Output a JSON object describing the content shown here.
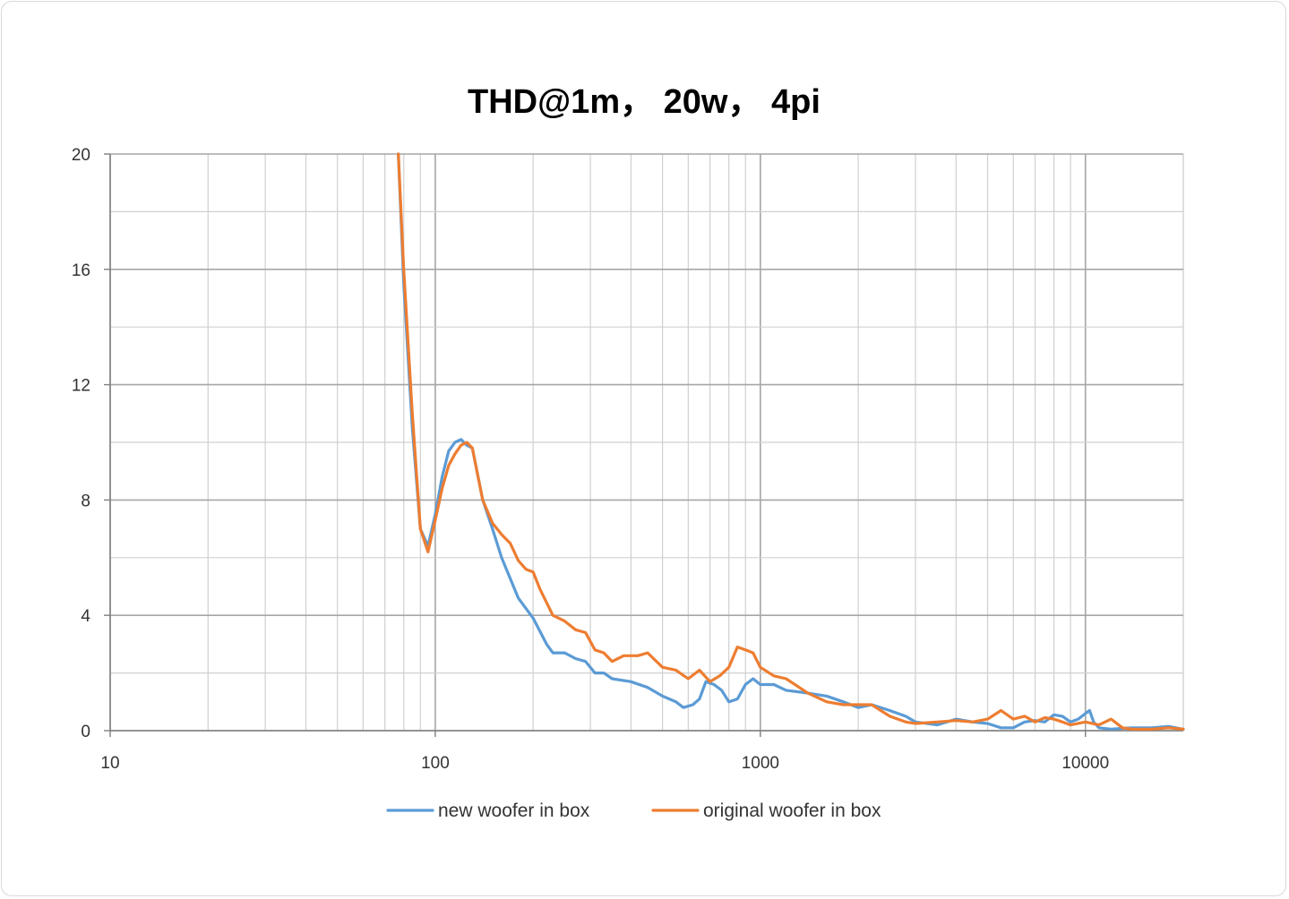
{
  "chart_data": {
    "type": "line",
    "title": "THD@1m，  20w，  4pi",
    "xlabel": "",
    "ylabel": "",
    "x_scale": "log",
    "xlim": [
      10,
      20000
    ],
    "ylim": [
      0,
      20
    ],
    "x_ticks": [
      10,
      100,
      1000,
      10000
    ],
    "x_tick_labels": [
      "10",
      "100",
      "1000",
      "10000"
    ],
    "y_ticks": [
      0,
      4,
      8,
      12,
      16,
      20
    ],
    "y_tick_labels": [
      "0",
      "4",
      "8",
      "12",
      "16",
      "20"
    ],
    "grid": true,
    "legend_position": "bottom",
    "series": [
      {
        "name": "new woofer in box",
        "color": "#5b9bd5",
        "points": [
          [
            77,
            20.5
          ],
          [
            80,
            15.5
          ],
          [
            85,
            10.5
          ],
          [
            90,
            7.0
          ],
          [
            95,
            6.4
          ],
          [
            100,
            7.5
          ],
          [
            105,
            8.8
          ],
          [
            110,
            9.7
          ],
          [
            115,
            10.0
          ],
          [
            120,
            10.1
          ],
          [
            125,
            9.9
          ],
          [
            130,
            9.8
          ],
          [
            140,
            8.0
          ],
          [
            150,
            7.0
          ],
          [
            160,
            6.0
          ],
          [
            180,
            4.6
          ],
          [
            200,
            3.9
          ],
          [
            220,
            3.0
          ],
          [
            230,
            2.7
          ],
          [
            250,
            2.7
          ],
          [
            270,
            2.5
          ],
          [
            290,
            2.4
          ],
          [
            310,
            2.0
          ],
          [
            330,
            2.0
          ],
          [
            350,
            1.8
          ],
          [
            400,
            1.7
          ],
          [
            450,
            1.5
          ],
          [
            500,
            1.2
          ],
          [
            550,
            1.0
          ],
          [
            580,
            0.8
          ],
          [
            620,
            0.9
          ],
          [
            650,
            1.1
          ],
          [
            680,
            1.7
          ],
          [
            720,
            1.6
          ],
          [
            760,
            1.4
          ],
          [
            800,
            1.0
          ],
          [
            850,
            1.1
          ],
          [
            900,
            1.6
          ],
          [
            950,
            1.8
          ],
          [
            1000,
            1.6
          ],
          [
            1100,
            1.6
          ],
          [
            1200,
            1.4
          ],
          [
            1400,
            1.3
          ],
          [
            1600,
            1.2
          ],
          [
            1800,
            1.0
          ],
          [
            2000,
            0.8
          ],
          [
            2200,
            0.9
          ],
          [
            2500,
            0.7
          ],
          [
            2800,
            0.5
          ],
          [
            3000,
            0.3
          ],
          [
            3500,
            0.2
          ],
          [
            4000,
            0.4
          ],
          [
            4500,
            0.3
          ],
          [
            5000,
            0.25
          ],
          [
            5500,
            0.1
          ],
          [
            6000,
            0.1
          ],
          [
            6500,
            0.3
          ],
          [
            7000,
            0.35
          ],
          [
            7500,
            0.3
          ],
          [
            8000,
            0.55
          ],
          [
            8500,
            0.5
          ],
          [
            9000,
            0.3
          ],
          [
            9500,
            0.4
          ],
          [
            10000,
            0.6
          ],
          [
            10300,
            0.7
          ],
          [
            10600,
            0.3
          ],
          [
            11000,
            0.1
          ],
          [
            12000,
            0.05
          ],
          [
            13000,
            0.08
          ],
          [
            14000,
            0.1
          ],
          [
            16000,
            0.1
          ],
          [
            18000,
            0.15
          ],
          [
            20000,
            0.05
          ]
        ]
      },
      {
        "name": "original woofer in box",
        "color": "#ed7d31",
        "points": [
          [
            77,
            20.5
          ],
          [
            80,
            16.0
          ],
          [
            85,
            11.0
          ],
          [
            90,
            7.0
          ],
          [
            95,
            6.2
          ],
          [
            100,
            7.3
          ],
          [
            105,
            8.4
          ],
          [
            110,
            9.2
          ],
          [
            115,
            9.6
          ],
          [
            120,
            9.9
          ],
          [
            125,
            10.0
          ],
          [
            130,
            9.8
          ],
          [
            140,
            8.0
          ],
          [
            150,
            7.2
          ],
          [
            160,
            6.8
          ],
          [
            170,
            6.5
          ],
          [
            180,
            5.9
          ],
          [
            190,
            5.6
          ],
          [
            200,
            5.5
          ],
          [
            210,
            4.9
          ],
          [
            230,
            4.0
          ],
          [
            250,
            3.8
          ],
          [
            270,
            3.5
          ],
          [
            290,
            3.4
          ],
          [
            310,
            2.8
          ],
          [
            330,
            2.7
          ],
          [
            350,
            2.4
          ],
          [
            380,
            2.6
          ],
          [
            420,
            2.6
          ],
          [
            450,
            2.7
          ],
          [
            500,
            2.2
          ],
          [
            550,
            2.1
          ],
          [
            600,
            1.8
          ],
          [
            650,
            2.1
          ],
          [
            700,
            1.7
          ],
          [
            750,
            1.9
          ],
          [
            800,
            2.2
          ],
          [
            850,
            2.9
          ],
          [
            900,
            2.8
          ],
          [
            950,
            2.7
          ],
          [
            1000,
            2.2
          ],
          [
            1100,
            1.9
          ],
          [
            1200,
            1.8
          ],
          [
            1400,
            1.3
          ],
          [
            1600,
            1.0
          ],
          [
            1800,
            0.9
          ],
          [
            2000,
            0.9
          ],
          [
            2200,
            0.9
          ],
          [
            2500,
            0.5
          ],
          [
            2800,
            0.3
          ],
          [
            3000,
            0.25
          ],
          [
            3500,
            0.3
          ],
          [
            4000,
            0.35
          ],
          [
            4500,
            0.3
          ],
          [
            5000,
            0.4
          ],
          [
            5500,
            0.7
          ],
          [
            6000,
            0.4
          ],
          [
            6500,
            0.5
          ],
          [
            7000,
            0.3
          ],
          [
            7500,
            0.45
          ],
          [
            8000,
            0.4
          ],
          [
            8500,
            0.3
          ],
          [
            9000,
            0.2
          ],
          [
            10000,
            0.3
          ],
          [
            11000,
            0.2
          ],
          [
            12000,
            0.4
          ],
          [
            13000,
            0.1
          ],
          [
            14000,
            0.05
          ],
          [
            16000,
            0.05
          ],
          [
            18000,
            0.1
          ],
          [
            20000,
            0.05
          ]
        ]
      }
    ]
  }
}
